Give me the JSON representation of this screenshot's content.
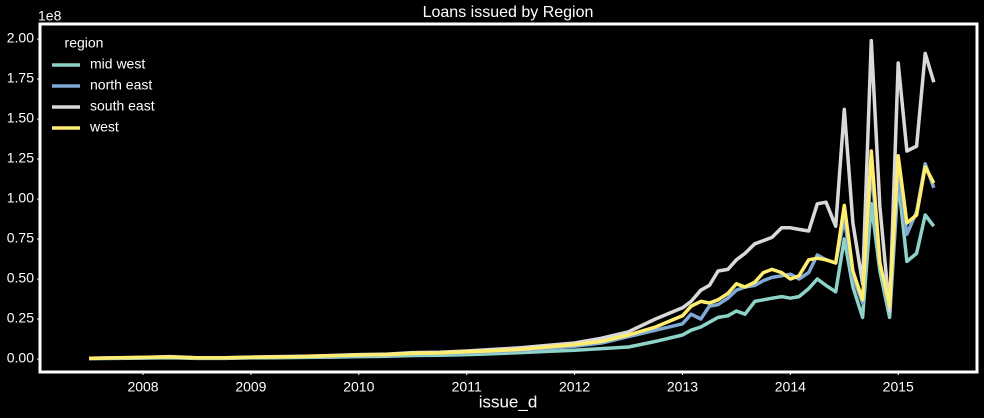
{
  "chart_data": {
    "type": "line",
    "title": "Loans issued by Region",
    "x_label": "issue_d",
    "y_offset_label": "1e8",
    "legend_title": "region",
    "legend_position": "upper left",
    "grid": false,
    "x": [
      2007.5,
      2007.75,
      2008,
      2008.25,
      2008.5,
      2008.75,
      2009,
      2009.25,
      2009.5,
      2009.75,
      2010,
      2010.25,
      2010.5,
      2010.75,
      2011,
      2011.25,
      2011.5,
      2011.75,
      2012,
      2012.25,
      2012.5,
      2012.75,
      2013.0,
      2013.08,
      2013.17,
      2013.25,
      2013.33,
      2013.42,
      2013.5,
      2013.58,
      2013.67,
      2013.75,
      2013.83,
      2013.92,
      2014.0,
      2014.08,
      2014.17,
      2014.25,
      2014.33,
      2014.42,
      2014.5,
      2014.58,
      2014.67,
      2014.75,
      2014.83,
      2014.92,
      2015.0,
      2015.08,
      2015.17,
      2015.25,
      2015.33
    ],
    "xlim": [
      2007.045,
      2015.73
    ],
    "xticks": [
      2008,
      2009,
      2010,
      2011,
      2012,
      2013,
      2014,
      2015
    ],
    "ylim": [
      -0.081,
      2.094
    ],
    "yticks": [
      {
        "value": 0,
        "label": "0.00"
      },
      {
        "value": 0.25,
        "label": "0.25"
      },
      {
        "value": 0.5,
        "label": "0.50"
      },
      {
        "value": 0.75,
        "label": "0.75"
      },
      {
        "value": 1,
        "label": "1.00"
      },
      {
        "value": 1.25,
        "label": "1.25"
      },
      {
        "value": 1.5,
        "label": "1.50"
      },
      {
        "value": 1.75,
        "label": "1.75"
      },
      {
        "value": 2,
        "label": "2.00"
      }
    ],
    "series": [
      {
        "name": "mid west",
        "color": "#8dd3c7",
        "values": [
          0.003,
          0.004,
          0.006,
          0.008,
          0.004,
          0.004,
          0.007,
          0.008,
          0.01,
          0.012,
          0.015,
          0.017,
          0.022,
          0.024,
          0.028,
          0.033,
          0.04,
          0.048,
          0.055,
          0.065,
          0.075,
          0.11,
          0.15,
          0.18,
          0.2,
          0.23,
          0.26,
          0.27,
          0.3,
          0.28,
          0.36,
          0.37,
          0.38,
          0.39,
          0.38,
          0.39,
          0.44,
          0.5,
          0.46,
          0.42,
          0.75,
          0.45,
          0.26,
          0.97,
          0.55,
          0.26,
          1.12,
          0.61,
          0.66,
          0.9,
          0.83
        ]
      },
      {
        "name": "north east",
        "color": "#80a9d6",
        "values": [
          0.004,
          0.006,
          0.009,
          0.012,
          0.006,
          0.006,
          0.01,
          0.012,
          0.015,
          0.018,
          0.022,
          0.025,
          0.032,
          0.034,
          0.04,
          0.047,
          0.055,
          0.068,
          0.08,
          0.1,
          0.14,
          0.18,
          0.22,
          0.28,
          0.25,
          0.33,
          0.34,
          0.38,
          0.43,
          0.45,
          0.46,
          0.49,
          0.51,
          0.52,
          0.53,
          0.5,
          0.54,
          0.65,
          0.62,
          0.6,
          0.88,
          0.52,
          0.35,
          1.2,
          0.6,
          0.3,
          1.15,
          0.78,
          0.92,
          1.22,
          1.07
        ]
      },
      {
        "name": "south east",
        "color": "#d9d9d9",
        "values": [
          0.005,
          0.008,
          0.01,
          0.015,
          0.008,
          0.008,
          0.012,
          0.015,
          0.018,
          0.022,
          0.028,
          0.03,
          0.04,
          0.042,
          0.05,
          0.06,
          0.07,
          0.085,
          0.1,
          0.13,
          0.17,
          0.25,
          0.32,
          0.36,
          0.43,
          0.46,
          0.55,
          0.56,
          0.62,
          0.66,
          0.72,
          0.74,
          0.76,
          0.82,
          0.82,
          0.81,
          0.8,
          0.97,
          0.98,
          0.83,
          1.56,
          0.85,
          0.47,
          1.99,
          0.95,
          0.3,
          1.85,
          1.3,
          1.33,
          1.91,
          1.73
        ]
      },
      {
        "name": "west",
        "color": "#ffed6f",
        "values": [
          0.004,
          0.007,
          0.01,
          0.013,
          0.007,
          0.007,
          0.011,
          0.013,
          0.016,
          0.02,
          0.025,
          0.028,
          0.035,
          0.038,
          0.045,
          0.052,
          0.06,
          0.075,
          0.09,
          0.11,
          0.15,
          0.2,
          0.27,
          0.33,
          0.36,
          0.35,
          0.37,
          0.41,
          0.47,
          0.45,
          0.48,
          0.54,
          0.56,
          0.54,
          0.5,
          0.52,
          0.62,
          0.63,
          0.62,
          0.6,
          0.96,
          0.55,
          0.37,
          1.3,
          0.6,
          0.33,
          1.27,
          0.85,
          0.9,
          1.2,
          1.1
        ]
      }
    ]
  }
}
